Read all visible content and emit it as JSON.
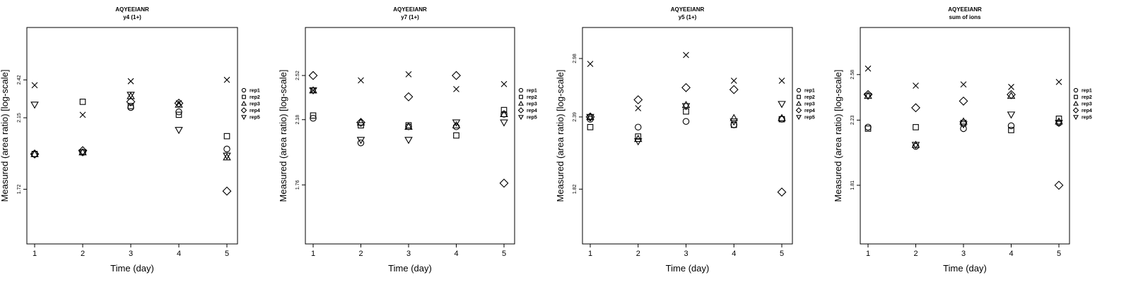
{
  "chart_data": [
    {
      "type": "scatter",
      "title": "AQYEEIANR",
      "subtitle": "y4 (1+)",
      "xlabel": "Time (day)",
      "ylabel": "Measured (area ratio) [log-scale]",
      "x_ticks": [
        "1",
        "2",
        "3",
        "4",
        "5"
      ],
      "y_ticks": [
        1.72,
        2.15,
        2.42
      ],
      "y_scale": "log",
      "ylim": [
        1.45,
        2.85
      ],
      "legend_position": "right",
      "series": [
        {
          "name": "rep1",
          "marker": "circle",
          "x": [
            1,
            2,
            3,
            4,
            5
          ],
          "y": [
            1.92,
            1.93,
            2.22,
            2.19,
            1.95
          ]
        },
        {
          "name": "rep2",
          "marker": "square",
          "x": [
            1,
            2,
            3,
            4,
            5
          ],
          "y": [
            1.92,
            2.26,
            2.23,
            2.17,
            2.03
          ]
        },
        {
          "name": "rep3",
          "marker": "triangle-up",
          "x": [
            1,
            2,
            3,
            4,
            5
          ],
          "y": [
            1.92,
            1.93,
            2.3,
            2.24,
            1.9
          ]
        },
        {
          "name": "rep4",
          "marker": "diamond",
          "x": [
            1,
            2,
            3,
            4,
            5
          ],
          "y": [
            1.92,
            1.94,
            2.26,
            2.25,
            1.71
          ]
        },
        {
          "name": "rep5",
          "marker": "triangle-down",
          "x": [
            1,
            2,
            3,
            4,
            5
          ],
          "y": [
            2.24,
            1.93,
            2.31,
            2.07,
            1.91
          ]
        },
        {
          "name": "",
          "marker": "cross",
          "x": [
            1,
            2,
            3,
            4,
            5
          ],
          "y": [
            2.38,
            2.17,
            2.41,
            2.25,
            2.42
          ]
        }
      ]
    },
    {
      "type": "scatter",
      "title": "AQYEEIANR",
      "subtitle": "y7 (1+)",
      "xlabel": "Time (day)",
      "ylabel": "Measured (area ratio) [log-scale]",
      "x_ticks": [
        "1",
        "2",
        "3",
        "4",
        "5"
      ],
      "y_ticks": [
        1.76,
        2.18,
        2.52
      ],
      "y_scale": "log",
      "ylim": [
        1.45,
        2.95
      ],
      "legend_position": "right",
      "series": [
        {
          "name": "rep1",
          "marker": "circle",
          "x": [
            1,
            2,
            3,
            4,
            5
          ],
          "y": [
            2.19,
            2.02,
            2.13,
            2.13,
            2.22
          ]
        },
        {
          "name": "rep2",
          "marker": "square",
          "x": [
            1,
            2,
            3,
            4,
            5
          ],
          "y": [
            2.21,
            2.14,
            2.14,
            2.07,
            2.25
          ]
        },
        {
          "name": "rep3",
          "marker": "triangle-up",
          "x": [
            1,
            2,
            3,
            4,
            5
          ],
          "y": [
            2.4,
            2.16,
            2.13,
            2.14,
            2.22
          ]
        },
        {
          "name": "rep4",
          "marker": "diamond",
          "x": [
            1,
            2,
            3,
            4,
            5
          ],
          "y": [
            2.52,
            2.16,
            2.35,
            2.52,
            1.77
          ]
        },
        {
          "name": "rep5",
          "marker": "triangle-down",
          "x": [
            1,
            2,
            3,
            4,
            5
          ],
          "y": [
            2.4,
            2.04,
            2.04,
            2.16,
            2.16
          ]
        },
        {
          "name": "",
          "marker": "cross",
          "x": [
            1,
            2,
            3,
            4,
            5
          ],
          "y": [
            2.4,
            2.48,
            2.53,
            2.41,
            2.45
          ]
        }
      ]
    },
    {
      "type": "scatter",
      "title": "AQYEEIANR",
      "subtitle": "y5 (1+)",
      "xlabel": "Time (day)",
      "ylabel": "Measured (area ratio) [log-scale]",
      "x_ticks": [
        "1",
        "2",
        "3",
        "4",
        "5"
      ],
      "y_ticks": [
        1.82,
        2.39,
        2.98
      ],
      "y_scale": "log",
      "ylim": [
        1.48,
        3.35
      ],
      "legend_position": "right",
      "series": [
        {
          "name": "rep1",
          "marker": "circle",
          "x": [
            1,
            2,
            3,
            4,
            5
          ],
          "y": [
            2.37,
            2.3,
            2.35,
            2.32,
            2.37
          ]
        },
        {
          "name": "rep2",
          "marker": "square",
          "x": [
            1,
            2,
            3,
            4,
            5
          ],
          "y": [
            2.3,
            2.22,
            2.44,
            2.32,
            2.37
          ]
        },
        {
          "name": "rep3",
          "marker": "triangle-up",
          "x": [
            1,
            2,
            3,
            4,
            5
          ],
          "y": [
            2.39,
            2.2,
            2.5,
            2.38,
            2.38
          ]
        },
        {
          "name": "rep4",
          "marker": "diamond",
          "x": [
            1,
            2,
            3,
            4,
            5
          ],
          "y": [
            2.39,
            2.55,
            2.67,
            2.65,
            1.8
          ]
        },
        {
          "name": "rep5",
          "marker": "triangle-down",
          "x": [
            1,
            2,
            3,
            4,
            5
          ],
          "y": [
            2.39,
            2.18,
            2.49,
            2.35,
            2.51
          ]
        },
        {
          "name": "",
          "marker": "cross",
          "x": [
            1,
            2,
            3,
            4,
            5
          ],
          "y": [
            2.92,
            2.47,
            3.02,
            2.74,
            2.74
          ]
        }
      ]
    },
    {
      "type": "scatter",
      "title": "AQYEEIANR",
      "subtitle": "sum of ions",
      "xlabel": "Time (day)",
      "ylabel": "Measured (area ratio) [log-scale]",
      "x_ticks": [
        "1",
        "2",
        "3",
        "4",
        "5"
      ],
      "y_ticks": [
        1.81,
        2.23,
        2.58
      ],
      "y_scale": "log",
      "ylim": [
        1.5,
        3.0
      ],
      "legend_position": "right",
      "series": [
        {
          "name": "rep1",
          "marker": "circle",
          "x": [
            1,
            2,
            3,
            4,
            5
          ],
          "y": [
            2.18,
            2.05,
            2.17,
            2.19,
            2.21
          ]
        },
        {
          "name": "rep2",
          "marker": "square",
          "x": [
            1,
            2,
            3,
            4,
            5
          ],
          "y": [
            2.17,
            2.18,
            2.21,
            2.16,
            2.24
          ]
        },
        {
          "name": "rep3",
          "marker": "triangle-up",
          "x": [
            1,
            2,
            3,
            4,
            5
          ],
          "y": [
            2.41,
            2.06,
            2.22,
            2.41,
            2.22
          ]
        },
        {
          "name": "rep4",
          "marker": "diamond",
          "x": [
            1,
            2,
            3,
            4,
            5
          ],
          "y": [
            2.42,
            2.32,
            2.37,
            2.42,
            1.81
          ]
        },
        {
          "name": "rep5",
          "marker": "triangle-down",
          "x": [
            1,
            2,
            3,
            4,
            5
          ],
          "y": [
            2.41,
            2.06,
            2.2,
            2.27,
            2.21
          ]
        },
        {
          "name": "",
          "marker": "cross",
          "x": [
            1,
            2,
            3,
            4,
            5
          ],
          "y": [
            2.63,
            2.49,
            2.5,
            2.48,
            2.52
          ]
        }
      ]
    }
  ]
}
